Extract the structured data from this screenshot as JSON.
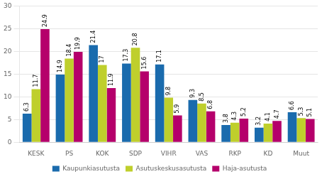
{
  "chart_data": {
    "type": "bar",
    "categories": [
      "KESK",
      "PS",
      "KOK",
      "SDP",
      "VIHR",
      "VAS",
      "RKP",
      "KD",
      "Muut"
    ],
    "series": [
      {
        "name": "Kaupunkiasutusta",
        "color": "#1A6BAD",
        "values": [
          6.3,
          14.9,
          21.4,
          17.3,
          17.1,
          9.3,
          3.8,
          3.2,
          6.6
        ]
      },
      {
        "name": "Asutuskeskusasutusta",
        "color": "#BFCF2C",
        "values": [
          11.7,
          18.4,
          17.0,
          20.8,
          9.8,
          8.5,
          4.3,
          4.1,
          5.3
        ]
      },
      {
        "name": "Haja-asutusta",
        "color": "#B5006B",
        "values": [
          24.9,
          19.9,
          11.9,
          15.6,
          5.9,
          6.8,
          5.2,
          4.7,
          5.1
        ]
      }
    ],
    "ylim": [
      0,
      30
    ],
    "yticks": [
      0,
      5,
      10,
      15,
      20,
      25,
      30
    ],
    "grid": true,
    "legend": "bottom",
    "data_labels": true
  }
}
